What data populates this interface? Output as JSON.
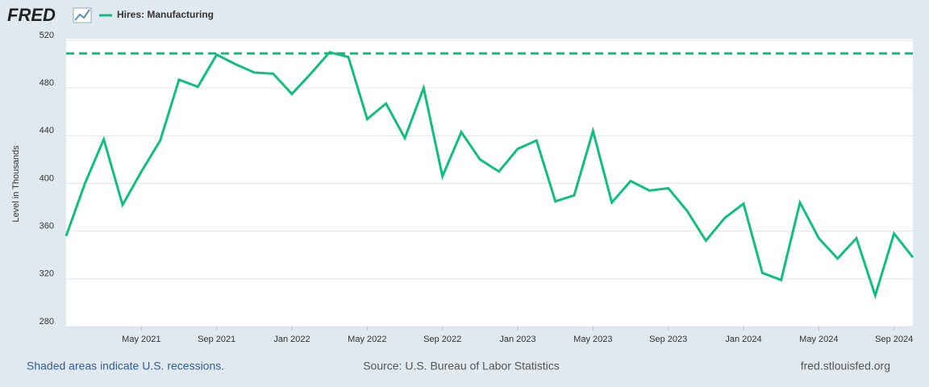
{
  "logo": "FRED",
  "footer": {
    "left": "Shaded areas indicate U.S. recessions.",
    "center": "Source: U.S. Bureau of Labor Statistics",
    "right": "fred.stlouisfed.org"
  },
  "chart_data": {
    "type": "line",
    "ylabel": "Level in Thousands",
    "x": [
      "2021-01",
      "2021-02",
      "2021-03",
      "2021-04",
      "2021-05",
      "2021-06",
      "2021-07",
      "2021-08",
      "2021-09",
      "2021-10",
      "2021-11",
      "2021-12",
      "2022-01",
      "2022-02",
      "2022-03",
      "2022-04",
      "2022-05",
      "2022-06",
      "2022-07",
      "2022-08",
      "2022-09",
      "2022-10",
      "2022-11",
      "2022-12",
      "2023-01",
      "2023-02",
      "2023-03",
      "2023-04",
      "2023-05",
      "2023-06",
      "2023-07",
      "2023-08",
      "2023-09",
      "2023-10",
      "2023-11",
      "2023-12",
      "2024-01",
      "2024-02",
      "2024-03",
      "2024-04",
      "2024-05",
      "2024-06",
      "2024-07",
      "2024-08",
      "2024-09",
      "2024-10"
    ],
    "series": [
      {
        "name": "Hires: Manufacturing",
        "color": "#12be7c",
        "values": [
          356,
          400,
          437,
          382,
          410,
          436,
          487,
          481,
          508,
          500,
          493,
          492,
          475,
          492,
          510,
          506,
          454,
          467,
          438,
          480,
          406,
          443,
          420,
          410,
          429,
          436,
          385,
          390,
          444,
          384,
          402,
          394,
          396,
          377,
          352,
          371,
          383,
          325,
          319,
          384,
          354,
          337,
          354,
          306,
          358,
          338
        ]
      }
    ],
    "reference_line": {
      "value": 509,
      "color": "#12be7c"
    },
    "xlim": [
      "2021-01",
      "2024-10"
    ],
    "xticks": [
      {
        "value": "2021-05",
        "label": "May 2021"
      },
      {
        "value": "2021-09",
        "label": "Sep 2021"
      },
      {
        "value": "2022-01",
        "label": "Jan 2022"
      },
      {
        "value": "2022-05",
        "label": "May 2022"
      },
      {
        "value": "2022-09",
        "label": "Sep 2022"
      },
      {
        "value": "2023-01",
        "label": "Jan 2023"
      },
      {
        "value": "2023-05",
        "label": "May 2023"
      },
      {
        "value": "2023-09",
        "label": "Sep 2023"
      },
      {
        "value": "2024-01",
        "label": "Jan 2024"
      },
      {
        "value": "2024-05",
        "label": "May 2024"
      },
      {
        "value": "2024-09",
        "label": "Sep 2024"
      }
    ],
    "ylim": [
      280,
      520
    ],
    "yticks": [
      280,
      320,
      360,
      400,
      440,
      480,
      520
    ],
    "grid": true
  }
}
